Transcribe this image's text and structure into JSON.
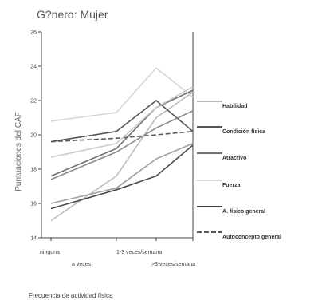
{
  "chart_data": {
    "type": "line",
    "title": "G?nero: Mujer",
    "ylabel": "Puntuaciones del CAF",
    "xlabel": "Frecuencia de actividad física",
    "categories": [
      "ninguna",
      "a veces",
      "1-3 veces/semana",
      ">3 veces/semana"
    ],
    "yticks": [
      14,
      16,
      18,
      20,
      22,
      24,
      26
    ],
    "ylim": [
      14,
      26
    ],
    "legend_position": "right",
    "series": [
      {
        "name": "Habilidad",
        "color": "#bdbdbd",
        "dash": "",
        "values": [
          15.0,
          17.6,
          21.0,
          22.5
        ]
      },
      {
        "name": "Condición física",
        "color": "#555555",
        "dash": "",
        "values": [
          19.6,
          20.2,
          22.0,
          20.2
        ]
      },
      {
        "name": "Atractivo",
        "color": "#707070",
        "dash": "",
        "values": [
          17.6,
          19.2,
          21.6,
          22.6
        ]
      },
      {
        "name": "Fuerza",
        "color": "#d5d5d5",
        "dash": "",
        "values": [
          20.8,
          21.3,
          23.9,
          22.2
        ]
      },
      {
        "name": "A. físico general",
        "color": "#4a4a4a",
        "dash": "",
        "values": [
          15.7,
          16.8,
          17.6,
          19.4
        ]
      },
      {
        "name": "Autoconcepto general",
        "color": "#5a5a5a",
        "dash": "6,3",
        "values": [
          19.6,
          19.8,
          20.0,
          20.2
        ]
      },
      {
        "name": "",
        "color": "#8a8a8a",
        "dash": "",
        "values": [
          17.4,
          19.0,
          20.4,
          21.4
        ]
      },
      {
        "name": "",
        "color": "#a0a0a0",
        "dash": "",
        "values": [
          16.0,
          16.9,
          18.6,
          19.5
        ]
      },
      {
        "name": "",
        "color": "#cacaca",
        "dash": "",
        "values": [
          18.7,
          19.5,
          21.6,
          22.8
        ]
      }
    ]
  }
}
